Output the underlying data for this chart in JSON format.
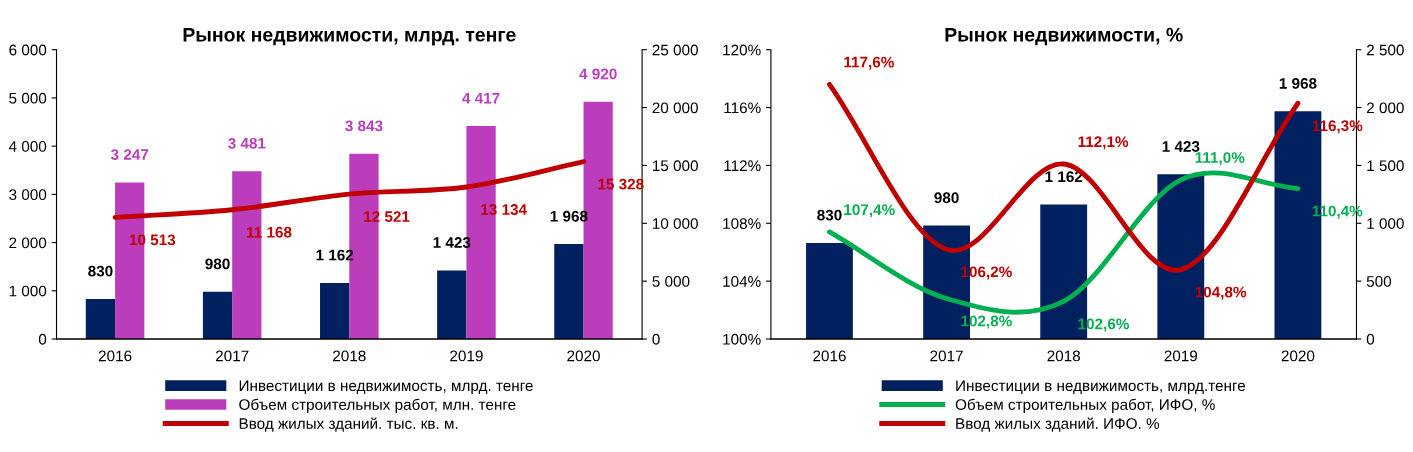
{
  "chart_data": [
    {
      "type": "bar",
      "title": "Рынок недвижимости, млрд. тенге",
      "categories": [
        "2016",
        "2017",
        "2018",
        "2019",
        "2020"
      ],
      "ylim": [
        0,
        6000
      ],
      "yticks": [
        0,
        {
          "value": 1000,
          "label": "1 000"
        },
        {
          "value": 2000,
          "label": "2 000"
        },
        {
          "value": 3000,
          "label": "3 000"
        },
        {
          "value": 4000,
          "label": "4 000"
        },
        {
          "value": 5000,
          "label": "5 000"
        },
        {
          "value": 6000,
          "label": "6 000"
        }
      ],
      "y2lim": [
        0,
        25000
      ],
      "y2ticks": [
        0,
        {
          "value": 5000,
          "label": "5 000"
        },
        {
          "value": 10000,
          "label": "10 000"
        },
        {
          "value": 15000,
          "label": "15 000"
        },
        {
          "value": 20000,
          "label": "20 000"
        },
        {
          "value": 25000,
          "label": "25 000"
        }
      ],
      "legend": "bottom",
      "grid": false,
      "series": [
        {
          "name": "Инвестиции в недвижимость, млрд. тенге",
          "color": "#002060",
          "values": [
            830,
            980,
            1162,
            1423,
            1968
          ],
          "value_labels": [
            "830",
            "980",
            "1 162",
            "1 423",
            "1 968"
          ]
        },
        {
          "name": "Объем строительных работ, млн. тенге",
          "color": "#bb3dbb",
          "values": [
            3247,
            3481,
            3843,
            4417,
            4920
          ],
          "value_labels": [
            "3 247",
            "3 481",
            "3 843",
            "4 417",
            "4 920"
          ]
        },
        {
          "name": "Ввод жилых зданий. тыс. кв. м.",
          "type": "line",
          "axis": "y2",
          "color": "#c00000",
          "values": [
            10513,
            11168,
            12521,
            13134,
            15328
          ],
          "value_labels": [
            "10 513",
            "11 168",
            "12 521",
            "13 134",
            "15 328"
          ]
        }
      ]
    },
    {
      "type": "bar",
      "title": "Рынок недвижимости, %",
      "categories": [
        "2016",
        "2017",
        "2018",
        "2019",
        "2020"
      ],
      "ylim": [
        100,
        120
      ],
      "yticks": [
        {
          "value": 100,
          "label": "100%"
        },
        {
          "value": 104,
          "label": "104%"
        },
        {
          "value": 108,
          "label": "108%"
        },
        {
          "value": 112,
          "label": "112%"
        },
        {
          "value": 116,
          "label": "116%"
        },
        {
          "value": 120,
          "label": "120%"
        }
      ],
      "y2lim": [
        0,
        2500
      ],
      "y2ticks": [
        0,
        500,
        {
          "value": 1000,
          "label": "1 000"
        },
        {
          "value": 1500,
          "label": "1 500"
        },
        {
          "value": 2000,
          "label": "2 000"
        },
        {
          "value": 2500,
          "label": "2 500"
        }
      ],
      "legend": "bottom",
      "grid": false,
      "series": [
        {
          "name": "Инвестиции в недвижимость, млрд.тенге",
          "axis": "y2",
          "color": "#002060",
          "values": [
            830,
            980,
            1162,
            1423,
            1968
          ],
          "value_labels": [
            "830",
            "980",
            "1 162",
            "1 423",
            "1 968"
          ]
        },
        {
          "name": "Объем строительных работ, ИФО, %",
          "type": "line",
          "color": "#00b050",
          "values": [
            107.4,
            102.8,
            102.6,
            111.0,
            110.4
          ],
          "value_labels": [
            "107,4%",
            "102,8%",
            "102,6%",
            "111,0%",
            "110,4%"
          ]
        },
        {
          "name": "Ввод жилых зданий. ИФО. %",
          "type": "line",
          "color": "#c00000",
          "values": [
            117.6,
            106.2,
            112.1,
            104.8,
            116.3
          ],
          "value_labels": [
            "117,6%",
            "106,2%",
            "112,1%",
            "104,8%",
            "116,3%"
          ]
        }
      ]
    }
  ]
}
